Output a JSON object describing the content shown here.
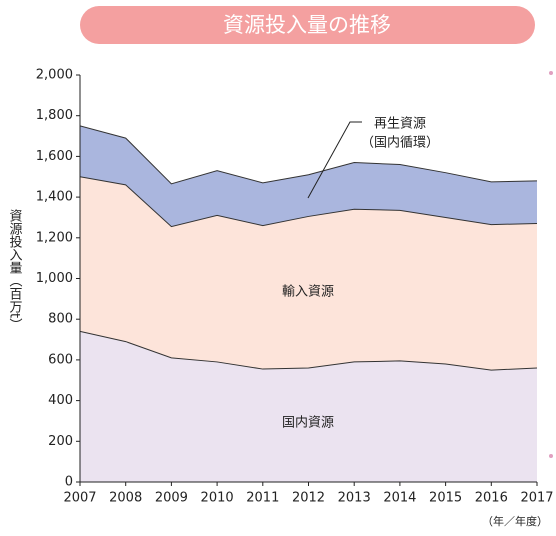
{
  "chart_data": {
    "type": "stacked_area",
    "title": "資源投入量の推移",
    "y_label": "資源投入量（百万t）",
    "x_label": "（年／年度）",
    "x": [
      2007,
      2008,
      2009,
      2010,
      2011,
      2012,
      2013,
      2014,
      2015,
      2016,
      2017
    ],
    "xlim": [
      2007,
      2017
    ],
    "xticks": [
      2007,
      2008,
      2009,
      2010,
      2011,
      2012,
      2013,
      2014,
      2015,
      2016,
      2017
    ],
    "ylim": [
      0,
      2000
    ],
    "yticks": [
      0,
      {
        "value": 200,
        "label": "200"
      },
      400,
      600,
      800,
      {
        "value": 1000,
        "label": "1,000"
      },
      {
        "value": 1200,
        "label": "1,200"
      },
      {
        "value": 1400,
        "label": "1,400"
      },
      {
        "value": 1600,
        "label": "1,600"
      },
      {
        "value": 1800,
        "label": "1,800"
      },
      {
        "value": 2000,
        "label": "2,000"
      }
    ],
    "series": [
      {
        "name": "国内資源",
        "color": "#ebe3f0",
        "values": [
          740,
          690,
          610,
          590,
          555,
          560,
          590,
          595,
          580,
          550,
          560
        ]
      },
      {
        "name": "輸入資源",
        "color": "#fde4da",
        "values": [
          760,
          770,
          645,
          720,
          705,
          745,
          750,
          740,
          720,
          715,
          710
        ]
      },
      {
        "name": "再生資源",
        "color": "#aab6de",
        "values": [
          250,
          230,
          210,
          220,
          210,
          205,
          230,
          225,
          220,
          210,
          210
        ]
      }
    ],
    "annotation": "（国内循環）"
  }
}
